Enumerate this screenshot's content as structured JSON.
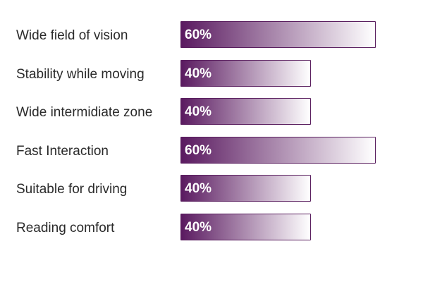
{
  "chart_data": {
    "type": "bar",
    "orientation": "horizontal",
    "categories": [
      "Wide field of vision",
      "Stability while moving",
      "Wide intermidiate zone",
      "Fast Interaction",
      "Suitable for driving",
      "Reading comfort"
    ],
    "values": [
      60,
      40,
      40,
      60,
      40,
      40
    ],
    "value_labels": [
      "60%",
      "40%",
      "40%",
      "60%",
      "40%",
      "40%"
    ],
    "unit": "%",
    "title": "",
    "xlabel": "",
    "ylabel": "",
    "grid": false,
    "colors": {
      "bar_start": "#5a1a60",
      "bar_end": "#ffffff",
      "bar_border": "#5a1f5f",
      "label_text": "#2a2a2a",
      "value_text": "#ffffff"
    }
  }
}
